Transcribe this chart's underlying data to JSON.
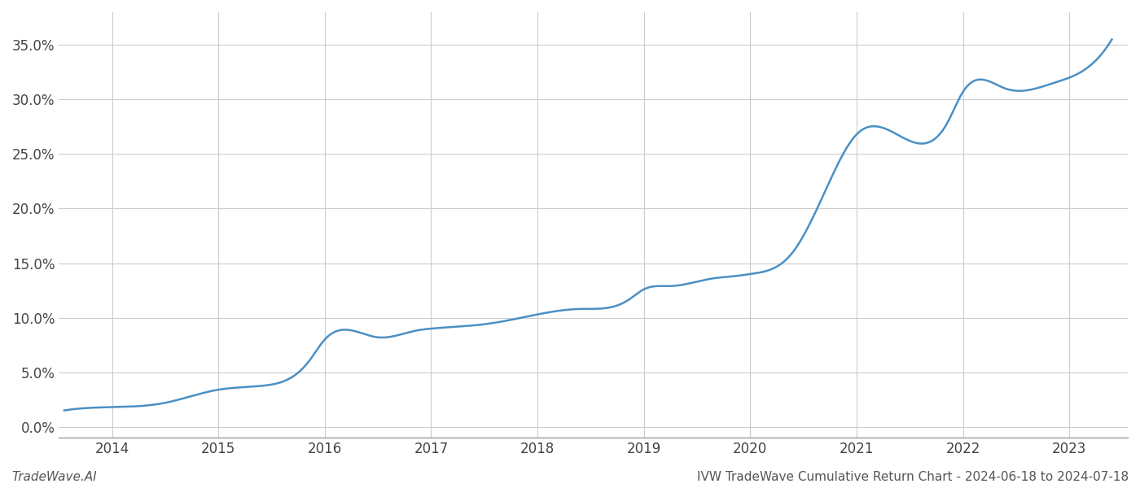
{
  "key_x": [
    2013.55,
    2014.0,
    2014.5,
    2015.0,
    2015.45,
    2015.85,
    2016.0,
    2016.5,
    2016.85,
    2017.0,
    2017.5,
    2017.85,
    2018.0,
    2018.4,
    2018.85,
    2019.0,
    2019.25,
    2019.5,
    2019.65,
    2019.85,
    2020.0,
    2020.4,
    2020.7,
    2021.0,
    2021.3,
    2021.85,
    2022.0,
    2022.4,
    2022.85,
    2023.0,
    2023.4
  ],
  "key_y": [
    0.015,
    0.018,
    0.022,
    0.034,
    0.038,
    0.06,
    0.08,
    0.082,
    0.088,
    0.09,
    0.094,
    0.1,
    0.103,
    0.108,
    0.116,
    0.126,
    0.129,
    0.133,
    0.136,
    0.138,
    0.14,
    0.16,
    0.215,
    0.268,
    0.272,
    0.278,
    0.307,
    0.31,
    0.315,
    0.32,
    0.355
  ],
  "line_color": "#4a90c4",
  "line_width": 1.8,
  "bg_color": "#ffffff",
  "grid_color": "#cccccc",
  "ylabel_ticks": [
    0.0,
    0.05,
    0.1,
    0.15,
    0.2,
    0.25,
    0.3,
    0.35
  ],
  "ylabel_labels": [
    "0.0%",
    "5.0%",
    "10.0%",
    "15.0%",
    "20.0%",
    "25.0%",
    "30.0%",
    "35.0%"
  ],
  "xlim": [
    2013.5,
    2023.55
  ],
  "ylim": [
    -0.01,
    0.38
  ],
  "xtick_years": [
    2014,
    2015,
    2016,
    2017,
    2018,
    2019,
    2020,
    2021,
    2022,
    2023
  ],
  "footer_left": "TradeWave.AI",
  "footer_right": "IVW TradeWave Cumulative Return Chart - 2024-06-18 to 2024-07-18",
  "footer_fontsize": 11,
  "tick_fontsize": 12,
  "spine_color": "#999999"
}
